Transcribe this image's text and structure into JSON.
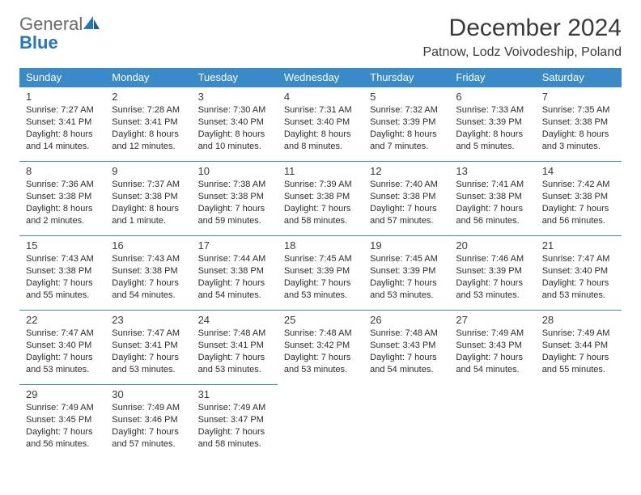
{
  "logo": {
    "general": "General",
    "blue": "Blue"
  },
  "title": "December 2024",
  "location": "Patnow, Lodz Voivodeship, Poland",
  "colors": {
    "header_bg": "#3a8ac8",
    "header_text": "#ffffff",
    "border": "#3a8ac8",
    "logo_gray": "#6a6a6a",
    "logo_blue": "#2378bb"
  },
  "weekdays": [
    "Sunday",
    "Monday",
    "Tuesday",
    "Wednesday",
    "Thursday",
    "Friday",
    "Saturday"
  ],
  "weeks": [
    [
      {
        "n": "1",
        "sr": "7:27 AM",
        "ss": "3:41 PM",
        "dl": "8 hours and 14 minutes."
      },
      {
        "n": "2",
        "sr": "7:28 AM",
        "ss": "3:41 PM",
        "dl": "8 hours and 12 minutes."
      },
      {
        "n": "3",
        "sr": "7:30 AM",
        "ss": "3:40 PM",
        "dl": "8 hours and 10 minutes."
      },
      {
        "n": "4",
        "sr": "7:31 AM",
        "ss": "3:40 PM",
        "dl": "8 hours and 8 minutes."
      },
      {
        "n": "5",
        "sr": "7:32 AM",
        "ss": "3:39 PM",
        "dl": "8 hours and 7 minutes."
      },
      {
        "n": "6",
        "sr": "7:33 AM",
        "ss": "3:39 PM",
        "dl": "8 hours and 5 minutes."
      },
      {
        "n": "7",
        "sr": "7:35 AM",
        "ss": "3:38 PM",
        "dl": "8 hours and 3 minutes."
      }
    ],
    [
      {
        "n": "8",
        "sr": "7:36 AM",
        "ss": "3:38 PM",
        "dl": "8 hours and 2 minutes."
      },
      {
        "n": "9",
        "sr": "7:37 AM",
        "ss": "3:38 PM",
        "dl": "8 hours and 1 minute."
      },
      {
        "n": "10",
        "sr": "7:38 AM",
        "ss": "3:38 PM",
        "dl": "7 hours and 59 minutes."
      },
      {
        "n": "11",
        "sr": "7:39 AM",
        "ss": "3:38 PM",
        "dl": "7 hours and 58 minutes."
      },
      {
        "n": "12",
        "sr": "7:40 AM",
        "ss": "3:38 PM",
        "dl": "7 hours and 57 minutes."
      },
      {
        "n": "13",
        "sr": "7:41 AM",
        "ss": "3:38 PM",
        "dl": "7 hours and 56 minutes."
      },
      {
        "n": "14",
        "sr": "7:42 AM",
        "ss": "3:38 PM",
        "dl": "7 hours and 56 minutes."
      }
    ],
    [
      {
        "n": "15",
        "sr": "7:43 AM",
        "ss": "3:38 PM",
        "dl": "7 hours and 55 minutes."
      },
      {
        "n": "16",
        "sr": "7:43 AM",
        "ss": "3:38 PM",
        "dl": "7 hours and 54 minutes."
      },
      {
        "n": "17",
        "sr": "7:44 AM",
        "ss": "3:38 PM",
        "dl": "7 hours and 54 minutes."
      },
      {
        "n": "18",
        "sr": "7:45 AM",
        "ss": "3:39 PM",
        "dl": "7 hours and 53 minutes."
      },
      {
        "n": "19",
        "sr": "7:45 AM",
        "ss": "3:39 PM",
        "dl": "7 hours and 53 minutes."
      },
      {
        "n": "20",
        "sr": "7:46 AM",
        "ss": "3:39 PM",
        "dl": "7 hours and 53 minutes."
      },
      {
        "n": "21",
        "sr": "7:47 AM",
        "ss": "3:40 PM",
        "dl": "7 hours and 53 minutes."
      }
    ],
    [
      {
        "n": "22",
        "sr": "7:47 AM",
        "ss": "3:40 PM",
        "dl": "7 hours and 53 minutes."
      },
      {
        "n": "23",
        "sr": "7:47 AM",
        "ss": "3:41 PM",
        "dl": "7 hours and 53 minutes."
      },
      {
        "n": "24",
        "sr": "7:48 AM",
        "ss": "3:41 PM",
        "dl": "7 hours and 53 minutes."
      },
      {
        "n": "25",
        "sr": "7:48 AM",
        "ss": "3:42 PM",
        "dl": "7 hours and 53 minutes."
      },
      {
        "n": "26",
        "sr": "7:48 AM",
        "ss": "3:43 PM",
        "dl": "7 hours and 54 minutes."
      },
      {
        "n": "27",
        "sr": "7:49 AM",
        "ss": "3:43 PM",
        "dl": "7 hours and 54 minutes."
      },
      {
        "n": "28",
        "sr": "7:49 AM",
        "ss": "3:44 PM",
        "dl": "7 hours and 55 minutes."
      }
    ],
    [
      {
        "n": "29",
        "sr": "7:49 AM",
        "ss": "3:45 PM",
        "dl": "7 hours and 56 minutes."
      },
      {
        "n": "30",
        "sr": "7:49 AM",
        "ss": "3:46 PM",
        "dl": "7 hours and 57 minutes."
      },
      {
        "n": "31",
        "sr": "7:49 AM",
        "ss": "3:47 PM",
        "dl": "7 hours and 58 minutes."
      },
      null,
      null,
      null,
      null
    ]
  ],
  "labels": {
    "sunrise_prefix": "Sunrise: ",
    "sunset_prefix": "Sunset: ",
    "daylight_prefix": "Daylight: "
  }
}
